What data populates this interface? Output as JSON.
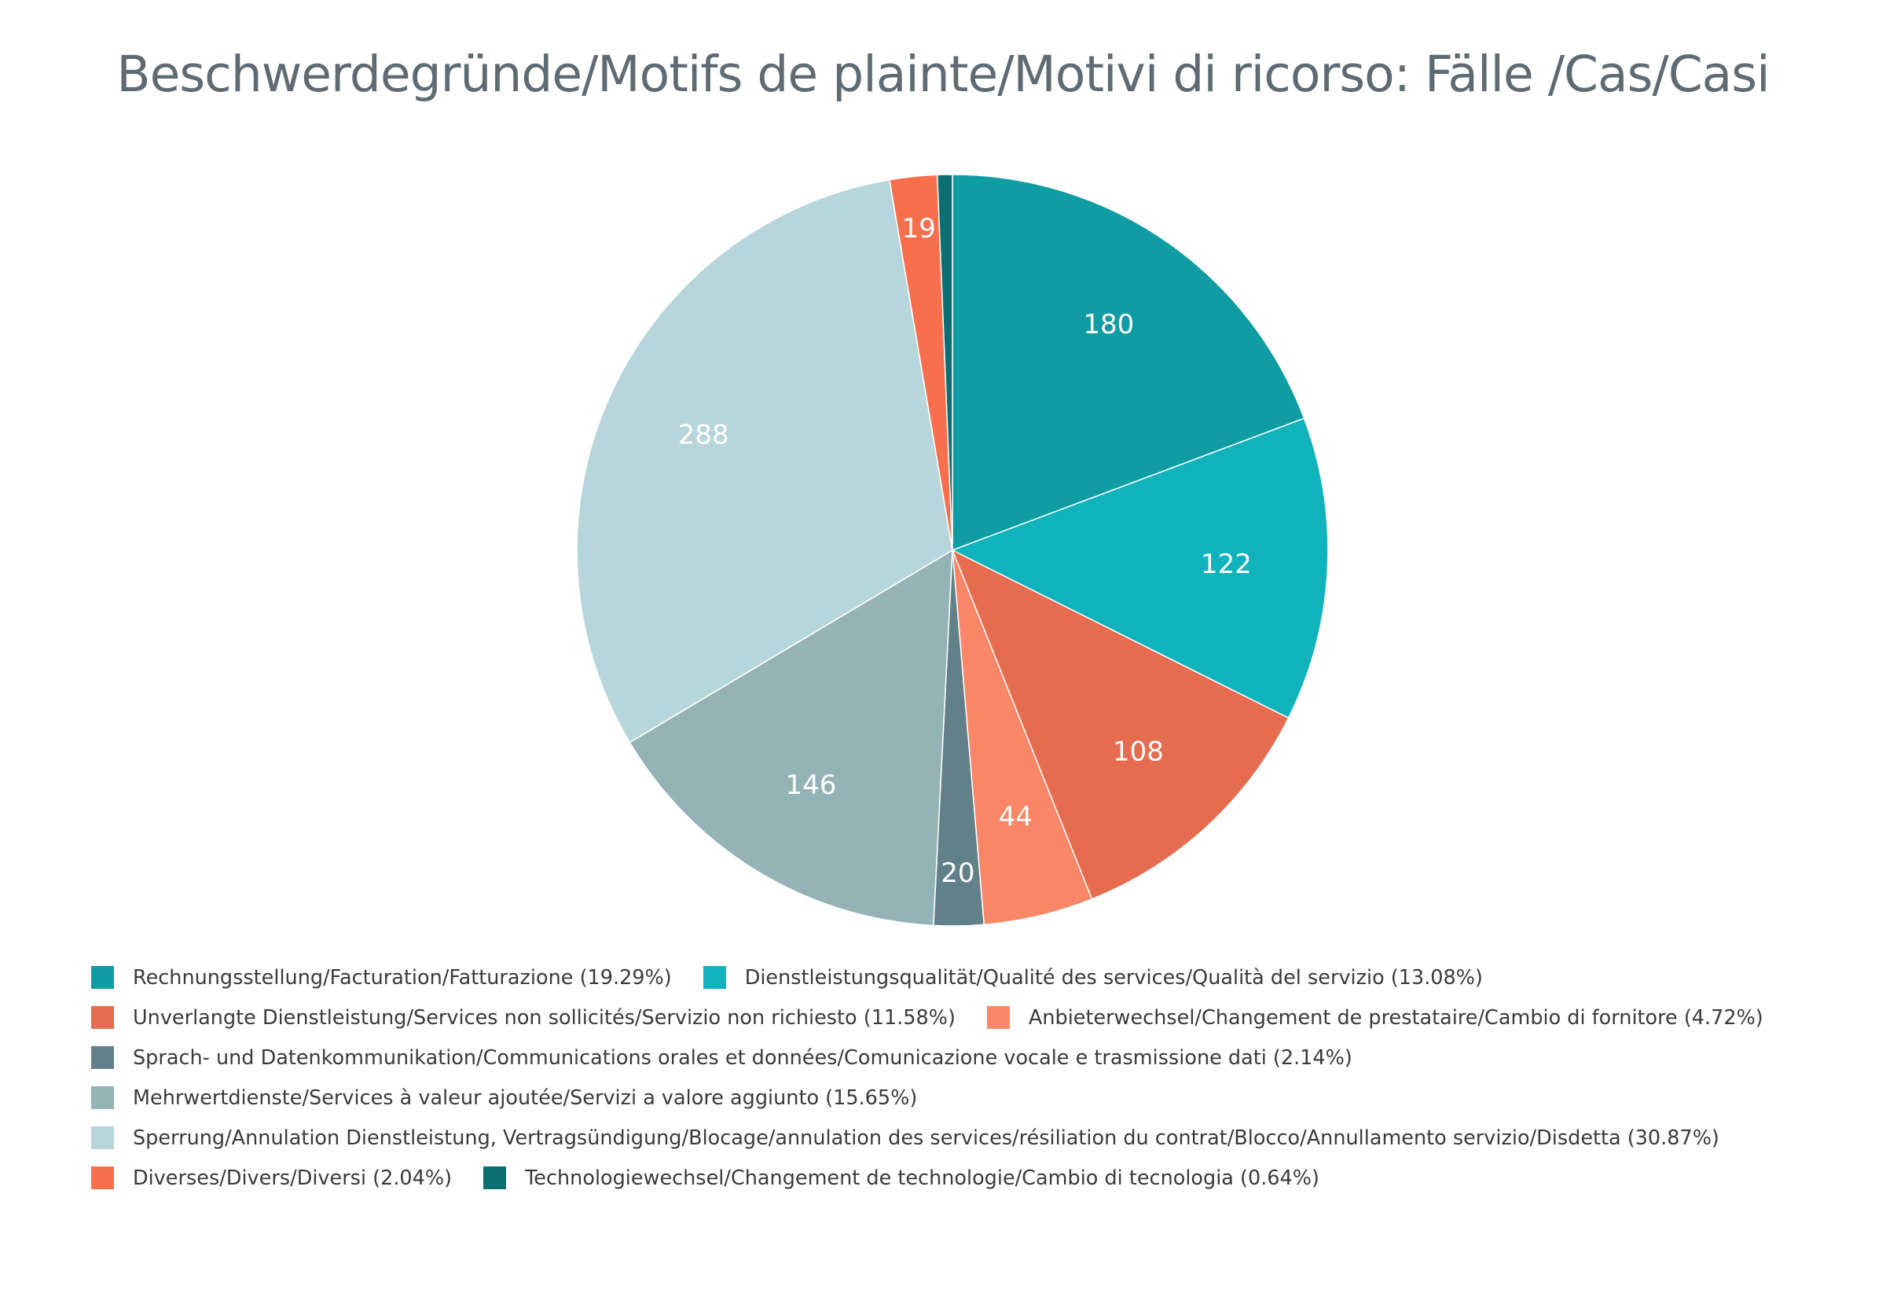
{
  "chart_data": {
    "type": "pie",
    "title": "Beschwerdegründe/Motifs de plainte/Motivi di ricorso: Fälle /Cas/Casi",
    "slices": [
      {
        "label": "Rechnungsstellung/Facturation/Fatturazione",
        "value": 180,
        "percent": "19.29%",
        "color": "#0f9da3"
      },
      {
        "label": "Dienstleistungsqualität/Qualité des services/Qualità del servizio",
        "value": 122,
        "percent": "13.08%",
        "color": "#10b2bb"
      },
      {
        "label": "Unverlangte Dienstleistung/Services non sollicités/Servizio non richiesto",
        "value": 108,
        "percent": "11.58%",
        "color": "#e66c4f"
      },
      {
        "label": "Anbieterwechsel/Changement de prestataire/Cambio di fornitore",
        "value": 44,
        "percent": "4.72%",
        "color": "#f98667"
      },
      {
        "label": "Sprach- und Datenkommunikation/Communications orales et données/Comunicazione vocale e trasmissione dati",
        "value": 20,
        "percent": "2.14%",
        "color": "#62808a"
      },
      {
        "label": "Mehrwertdienste/Services à valeur ajoutée/Servizi a valore aggiunto",
        "value": 146,
        "percent": "15.65%",
        "color": "#95b3b7"
      },
      {
        "label": "Sperrung/Annulation Dienstleistung, Vertragsündigung/Blocage/annulation des services/résiliation du contrat/Blocco/Annullamento servizio/Disdetta",
        "value": 288,
        "percent": "30.87%",
        "color": "#b7d6db"
      },
      {
        "label": "Diverses/Divers/Diversi",
        "value": 19,
        "percent": "2.04%",
        "color": "#f86f4e"
      },
      {
        "label": "Technologiewechsel/Changement de technologie/Cambio di tecnologia",
        "value": 6,
        "percent": "0.64%",
        "color": "#0b6e72"
      }
    ],
    "show_value_labels": true,
    "legend_position": "bottom",
    "legend_rows": [
      [
        0,
        1
      ],
      [
        2,
        3
      ],
      [
        4
      ],
      [
        5
      ],
      [
        6
      ],
      [
        7,
        8
      ]
    ]
  }
}
